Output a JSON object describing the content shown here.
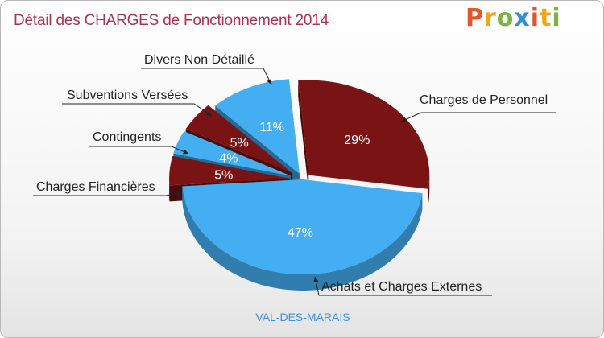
{
  "title": "Détail des CHARGES de Fonctionnement 2014",
  "subtitle": "VAL-DES-MARAIS",
  "logo": {
    "letters": [
      "P",
      "r",
      "o",
      "x",
      "i",
      "t",
      "i"
    ],
    "colors": [
      "#e8532a",
      "#f2a516",
      "#7cb342",
      "#2f8fd8",
      "#e8532a",
      "#f2a516",
      "#7cb342"
    ]
  },
  "colors": {
    "dark_red": "#7a1414",
    "light_blue": "#44aef2"
  },
  "chart_data": {
    "type": "pie",
    "title": "Détail des CHARGES de Fonctionnement 2014",
    "subtitle": "VAL-DES-MARAIS",
    "slices": [
      {
        "label": "Charges de Personnel",
        "value": 29,
        "value_label": "29%",
        "color": "#7a1414"
      },
      {
        "label": "Achats et Charges Externes",
        "value": 47,
        "value_label": "47%",
        "color": "#44aef2"
      },
      {
        "label": "Charges Financières",
        "value": 5,
        "value_label": "5%",
        "color": "#7a1414"
      },
      {
        "label": "Contingents",
        "value": 4,
        "value_label": "4%",
        "color": "#44aef2"
      },
      {
        "label": "Subventions Versées",
        "value": 5,
        "value_label": "5%",
        "color": "#7a1414"
      },
      {
        "label": "Divers Non Détaillé",
        "value": 11,
        "value_label": "11%",
        "color": "#44aef2"
      }
    ]
  }
}
